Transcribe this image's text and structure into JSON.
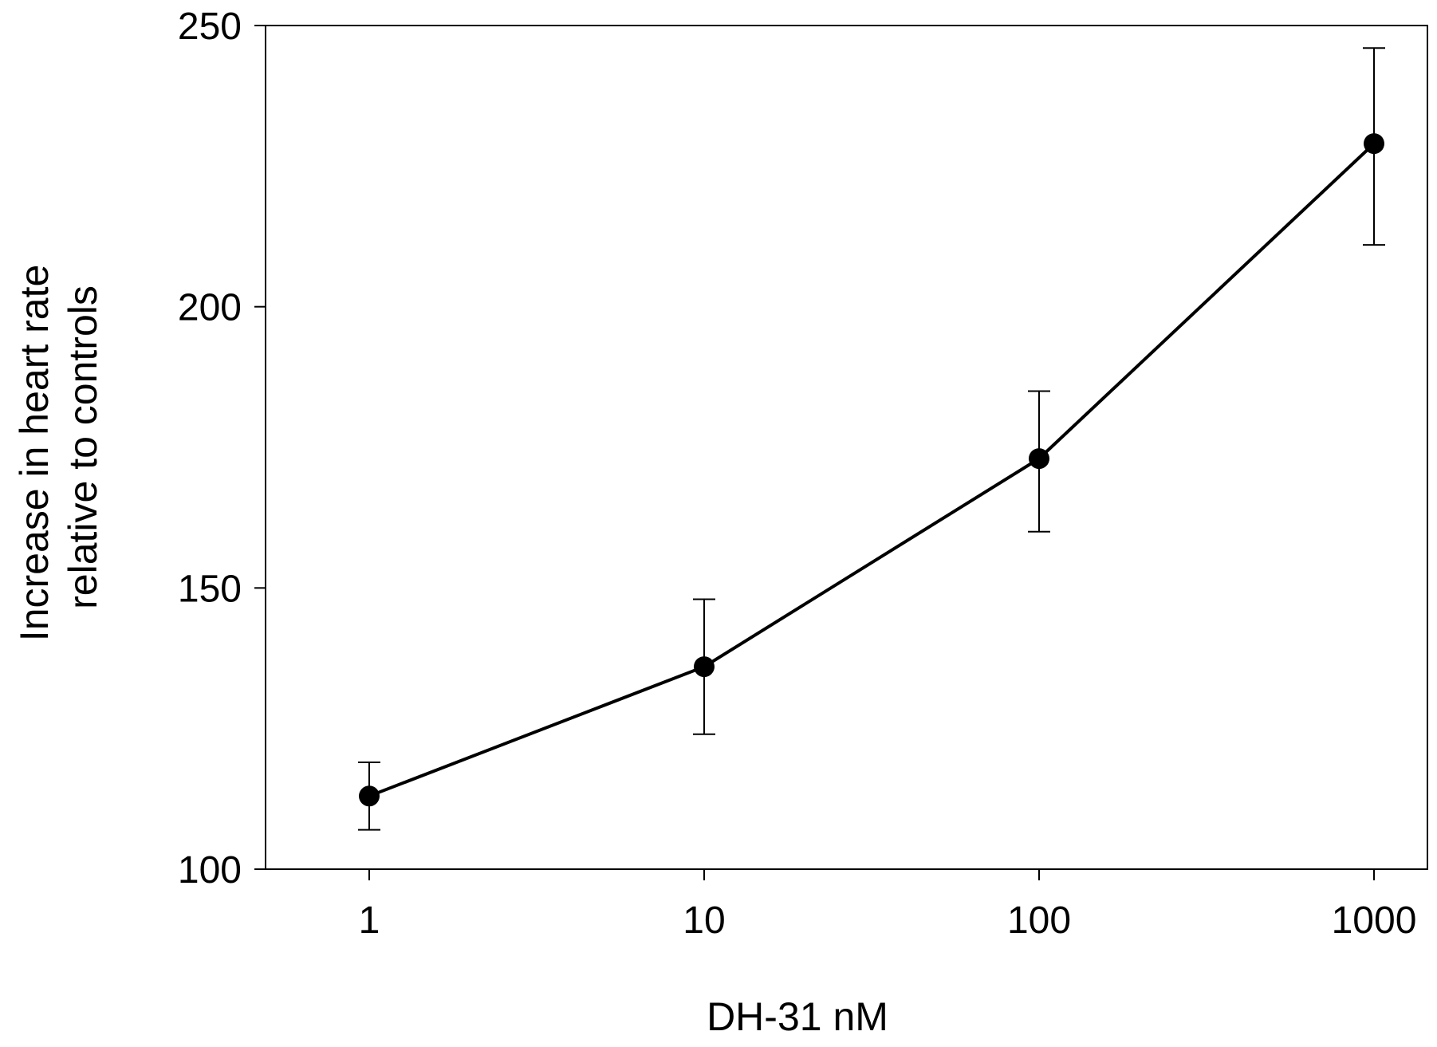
{
  "chart_data": {
    "type": "line",
    "title": "",
    "xlabel": "DH-31 nM",
    "ylabel_lines": [
      "Increase in heart rate",
      "relative to controls"
    ],
    "x_scale": "log",
    "x_ticks": [
      1,
      10,
      100,
      1000
    ],
    "x_tick_labels": [
      "1",
      "10",
      "100",
      "1000"
    ],
    "ylim": [
      100,
      250
    ],
    "y_ticks": [
      100,
      150,
      200,
      250
    ],
    "y_tick_labels": [
      "100",
      "150",
      "200",
      "250"
    ],
    "grid": false,
    "legend": "none",
    "colors": {
      "line": "#000000",
      "marker": "#000000"
    },
    "series": [
      {
        "x": [
          1,
          10,
          100,
          1000
        ],
        "y": [
          113,
          136,
          173,
          229
        ],
        "error_upper": [
          119,
          148,
          185,
          246
        ],
        "error_lower": [
          107,
          124,
          160,
          211
        ]
      }
    ]
  }
}
